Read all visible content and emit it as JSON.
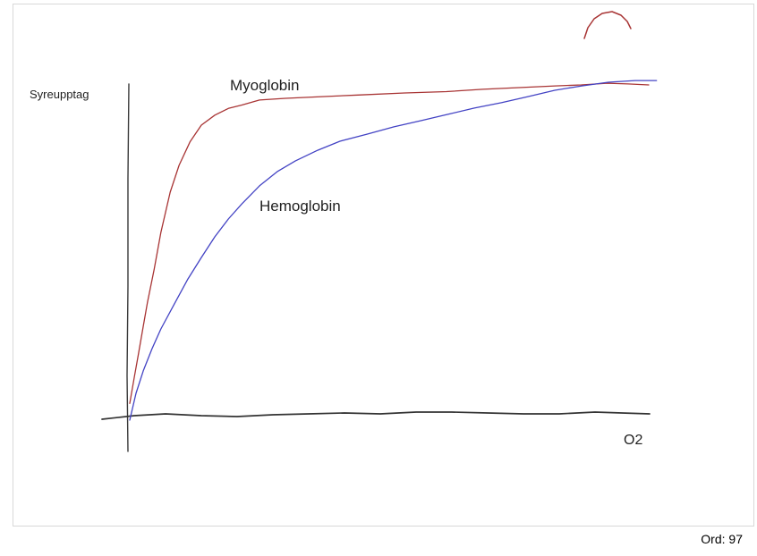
{
  "labels": {
    "y_axis": "Syreupptag",
    "x_axis": "O2",
    "myoglobin": "Myoglobin",
    "hemoglobin": "Hemoglobin"
  },
  "footer": {
    "word_count": "Ord: 97"
  },
  "colors": {
    "myoglobin": "#a83434",
    "hemoglobin": "#4343c4",
    "baseline": "#333333",
    "axis": "#3a3a3a",
    "panel_border": "#d8d8d8"
  },
  "chart_data": {
    "type": "line",
    "title": "",
    "xlabel": "O2",
    "ylabel": "Syreupptag",
    "x_range": [
      0,
      102
    ],
    "y_range": [
      0,
      105
    ],
    "grid": false,
    "legend": "inline-annotations",
    "series": [
      {
        "name": "Myoglobin",
        "color": "#a83434",
        "x": [
          0,
          0.9,
          1.7,
          2.6,
          3.4,
          4.7,
          6,
          7.8,
          9.5,
          11.6,
          13.8,
          16.4,
          19,
          21.6,
          25,
          30,
          37,
          44,
          53,
          61,
          68,
          75,
          82,
          87,
          92,
          96,
          100
        ],
        "y": [
          5,
          13,
          20,
          28,
          35,
          45,
          56,
          68,
          76,
          83,
          88,
          91,
          93,
          94,
          95.5,
          96,
          96.5,
          97,
          97.6,
          98,
          98.7,
          99.2,
          99.7,
          100,
          100.5,
          100.3,
          100
        ]
      },
      {
        "name": "Hemoglobin",
        "color": "#4343c4",
        "x": [
          0,
          1.2,
          2.6,
          4.3,
          6,
          8.6,
          11.2,
          13.8,
          16.4,
          19,
          21.6,
          25,
          28.4,
          31.9,
          36.2,
          40.5,
          45.7,
          50.9,
          56,
          61.2,
          66.4,
          71.6,
          76.7,
          81.9,
          87.1,
          92.2,
          97.4,
          101.5
        ],
        "y": [
          0,
          8,
          14.7,
          21.3,
          27.2,
          34.7,
          42.1,
          48.5,
          54.7,
          60,
          64.5,
          69.9,
          74.1,
          77.3,
          80.5,
          83.2,
          85.3,
          87.5,
          89.3,
          91.2,
          93.1,
          94.7,
          96.5,
          98.4,
          99.7,
          100.8,
          101.3,
          101.3
        ]
      }
    ],
    "annotations": [
      {
        "text": "Myoglobin",
        "series": "Myoglobin",
        "position": "above-curve-left"
      },
      {
        "text": "Hemoglobin",
        "series": "Hemoglobin",
        "position": "right-of-curve-mid"
      },
      {
        "text": "Syreupptag",
        "role": "y-axis-label"
      },
      {
        "text": "O2",
        "role": "x-axis-label"
      }
    ]
  },
  "freehand": [
    {
      "name": "y-axis-line",
      "color": "#3a3a3a",
      "width": 1.4,
      "points": [
        [
          144,
          94
        ],
        [
          143,
          200
        ],
        [
          143,
          320
        ],
        [
          142,
          420
        ],
        [
          143,
          505
        ]
      ]
    },
    {
      "name": "baseline-stroke",
      "color": "#333333",
      "width": 1.7,
      "points": [
        [
          114,
          469
        ],
        [
          150,
          465
        ],
        [
          185,
          463
        ],
        [
          225,
          465
        ],
        [
          265,
          466
        ],
        [
          305,
          464
        ],
        [
          345,
          463
        ],
        [
          385,
          462
        ],
        [
          425,
          463
        ],
        [
          465,
          461
        ],
        [
          505,
          461
        ],
        [
          545,
          462
        ],
        [
          585,
          463
        ],
        [
          625,
          463
        ],
        [
          665,
          461
        ],
        [
          695,
          462
        ],
        [
          726,
          463
        ]
      ]
    },
    {
      "name": "red-arc-stroke",
      "color": "#a83434",
      "width": 1.5,
      "points": [
        [
          653,
          43
        ],
        [
          657,
          31
        ],
        [
          664,
          21
        ],
        [
          673,
          15
        ],
        [
          684,
          13
        ],
        [
          694,
          17
        ],
        [
          701,
          24
        ],
        [
          705,
          32
        ]
      ]
    }
  ]
}
